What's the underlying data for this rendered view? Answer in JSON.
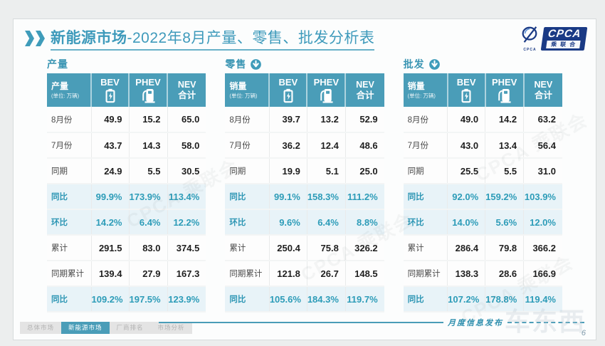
{
  "header": {
    "title_bold": "新能源市场",
    "title_rest": "-2022年8月产量、零售、批发分析表",
    "logo": {
      "acronym": "CPCA",
      "name": "乘联合",
      "swirl_caption": "CPCA"
    }
  },
  "columns": {
    "bev": "BEV",
    "phev": "PHEV",
    "nev_line1": "NEV",
    "nev_line2": "合计"
  },
  "tables": [
    {
      "section": "产量",
      "arrow_icon": false,
      "measure": "产量",
      "unit": "(单位: 万辆)",
      "rows": [
        {
          "label": "8月份",
          "values": [
            "49.9",
            "15.2",
            "65.0"
          ],
          "highlight": false
        },
        {
          "label": "7月份",
          "values": [
            "43.7",
            "14.3",
            "58.0"
          ],
          "highlight": false
        },
        {
          "label": "同期",
          "values": [
            "24.9",
            "5.5",
            "30.5"
          ],
          "highlight": false
        },
        {
          "label": "同比",
          "values": [
            "99.9%",
            "173.9%",
            "113.4%"
          ],
          "highlight": true
        },
        {
          "label": "环比",
          "values": [
            "14.2%",
            "6.4%",
            "12.2%"
          ],
          "highlight": true
        },
        {
          "label": "累计",
          "values": [
            "291.5",
            "83.0",
            "374.5"
          ],
          "highlight": false
        },
        {
          "label": "同期累计",
          "values": [
            "139.4",
            "27.9",
            "167.3"
          ],
          "highlight": false
        },
        {
          "label": "同比",
          "values": [
            "109.2%",
            "197.5%",
            "123.9%"
          ],
          "highlight": true
        }
      ]
    },
    {
      "section": "零售",
      "arrow_icon": true,
      "measure": "销量",
      "unit": "(单位: 万辆)",
      "rows": [
        {
          "label": "8月份",
          "values": [
            "39.7",
            "13.2",
            "52.9"
          ],
          "highlight": false
        },
        {
          "label": "7月份",
          "values": [
            "36.2",
            "12.4",
            "48.6"
          ],
          "highlight": false
        },
        {
          "label": "同期",
          "values": [
            "19.9",
            "5.1",
            "25.0"
          ],
          "highlight": false
        },
        {
          "label": "同比",
          "values": [
            "99.1%",
            "158.3%",
            "111.2%"
          ],
          "highlight": true
        },
        {
          "label": "环比",
          "values": [
            "9.6%",
            "6.4%",
            "8.8%"
          ],
          "highlight": true
        },
        {
          "label": "累计",
          "values": [
            "250.4",
            "75.8",
            "326.2"
          ],
          "highlight": false
        },
        {
          "label": "同期累计",
          "values": [
            "121.8",
            "26.7",
            "148.5"
          ],
          "highlight": false
        },
        {
          "label": "同比",
          "values": [
            "105.6%",
            "184.3%",
            "119.7%"
          ],
          "highlight": true
        }
      ]
    },
    {
      "section": "批发",
      "arrow_icon": true,
      "measure": "销量",
      "unit": "(单位: 万辆)",
      "rows": [
        {
          "label": "8月份",
          "values": [
            "49.0",
            "14.2",
            "63.2"
          ],
          "highlight": false
        },
        {
          "label": "7月份",
          "values": [
            "43.0",
            "13.4",
            "56.4"
          ],
          "highlight": false
        },
        {
          "label": "同期",
          "values": [
            "25.5",
            "5.5",
            "31.0"
          ],
          "highlight": false
        },
        {
          "label": "同比",
          "values": [
            "92.0%",
            "159.2%",
            "103.9%"
          ],
          "highlight": true
        },
        {
          "label": "环比",
          "values": [
            "14.0%",
            "5.6%",
            "12.0%"
          ],
          "highlight": true
        },
        {
          "label": "累计",
          "values": [
            "286.4",
            "79.8",
            "366.2"
          ],
          "highlight": false
        },
        {
          "label": "同期累计",
          "values": [
            "138.3",
            "28.6",
            "166.9"
          ],
          "highlight": false
        },
        {
          "label": "同比",
          "values": [
            "107.2%",
            "178.8%",
            "119.4%"
          ],
          "highlight": true
        }
      ]
    }
  ],
  "footer": {
    "tabs": [
      {
        "label": "总体市场",
        "active": false
      },
      {
        "label": "新能源市场",
        "active": true
      },
      {
        "label": "厂商排名",
        "active": false
      },
      {
        "label": "市场分析",
        "active": false
      }
    ],
    "note": "月度信息发布",
    "page": "6"
  },
  "watermark": "CPCA 乘联会",
  "watermark_corner": "车东西",
  "colors": {
    "accent": "#4A9DB8",
    "highlight_bg": "#E8F3F8",
    "percent_text": "#2D9CB8",
    "logo_navy": "#1A3A85"
  }
}
